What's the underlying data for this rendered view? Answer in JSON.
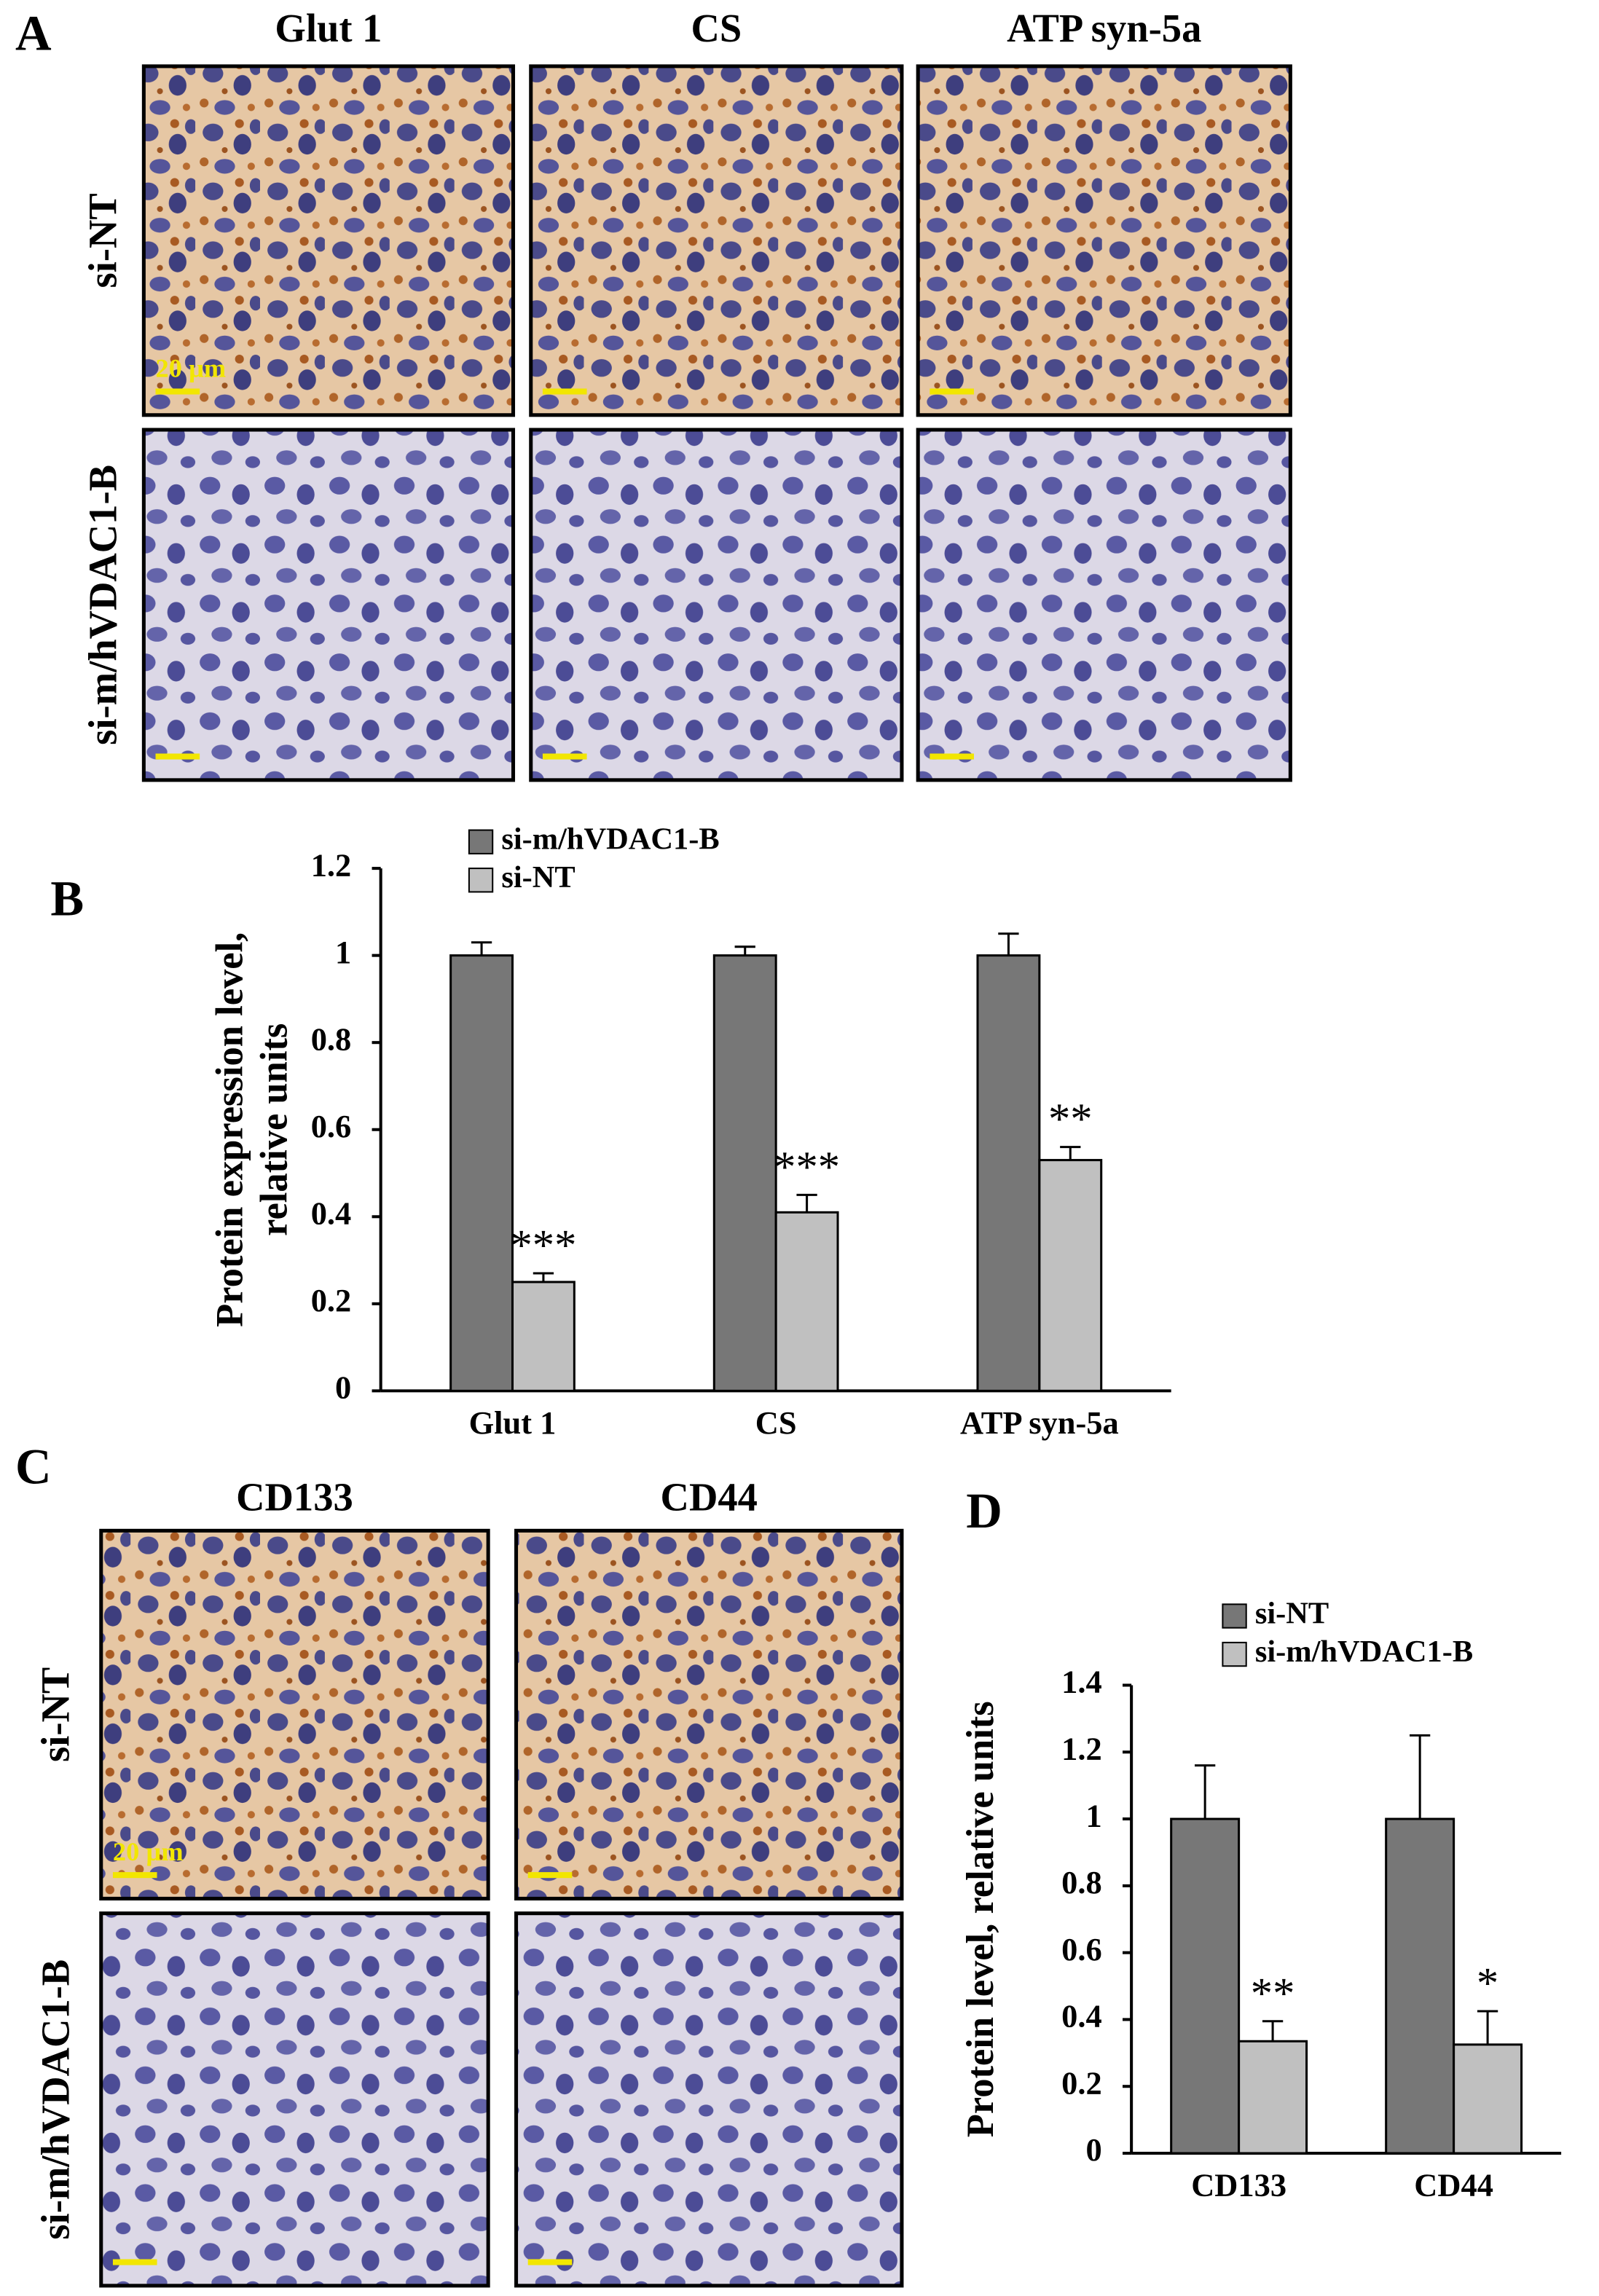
{
  "figure": {
    "panel_labels": [
      "A",
      "B",
      "C",
      "D"
    ],
    "panel_a": {
      "columns": [
        "Glut 1",
        "CS",
        "ATP syn-5a"
      ],
      "rows": [
        "si-NT",
        "si-m/hVDAC1-B"
      ],
      "scale_bar": "20 µm"
    },
    "panel_c": {
      "columns": [
        "CD133",
        "CD44"
      ],
      "rows": [
        "si-NT",
        "si-m/hVDAC1-B"
      ],
      "scale_bar": "20 µm"
    }
  },
  "chart_data": [
    {
      "type": "bar",
      "ylabel": [
        "Protein expression level,",
        "relative units"
      ],
      "categories": [
        "Glut 1",
        "CS",
        "ATP syn-5a"
      ],
      "series": [
        {
          "name": "si-m/hVDAC1-B",
          "color": "#777777",
          "values": [
            1,
            1,
            1
          ],
          "errors": [
            0.03,
            0.02,
            0.05
          ]
        },
        {
          "name": "si-NT",
          "color": "#c0c0c0",
          "values": [
            0.25,
            0.41,
            0.53
          ],
          "errors": [
            0.02,
            0.04,
            0.03
          ]
        }
      ],
      "annotations": [
        "***",
        "***",
        "**"
      ],
      "ylim": [
        0,
        1.2
      ],
      "yticks": [
        0,
        0.2,
        0.4,
        0.6,
        0.8,
        1,
        1.2
      ],
      "legend": "top"
    },
    {
      "type": "bar",
      "ylabel": [
        "Protein level, relative units"
      ],
      "categories": [
        "CD133",
        "CD44"
      ],
      "series": [
        {
          "name": "si-NT",
          "color": "#777777",
          "values": [
            1,
            1
          ],
          "errors": [
            0.16,
            0.25
          ]
        },
        {
          "name": "si-m/hVDAC1-B",
          "color": "#c0c0c0",
          "values": [
            0.335,
            0.325
          ],
          "errors": [
            0.06,
            0.1
          ]
        }
      ],
      "annotations": [
        "**",
        "*"
      ],
      "ylim": [
        0,
        1.4
      ],
      "yticks": [
        0,
        0.2,
        0.4,
        0.6,
        0.8,
        1,
        1.2,
        1.4
      ],
      "legend": "top"
    }
  ]
}
